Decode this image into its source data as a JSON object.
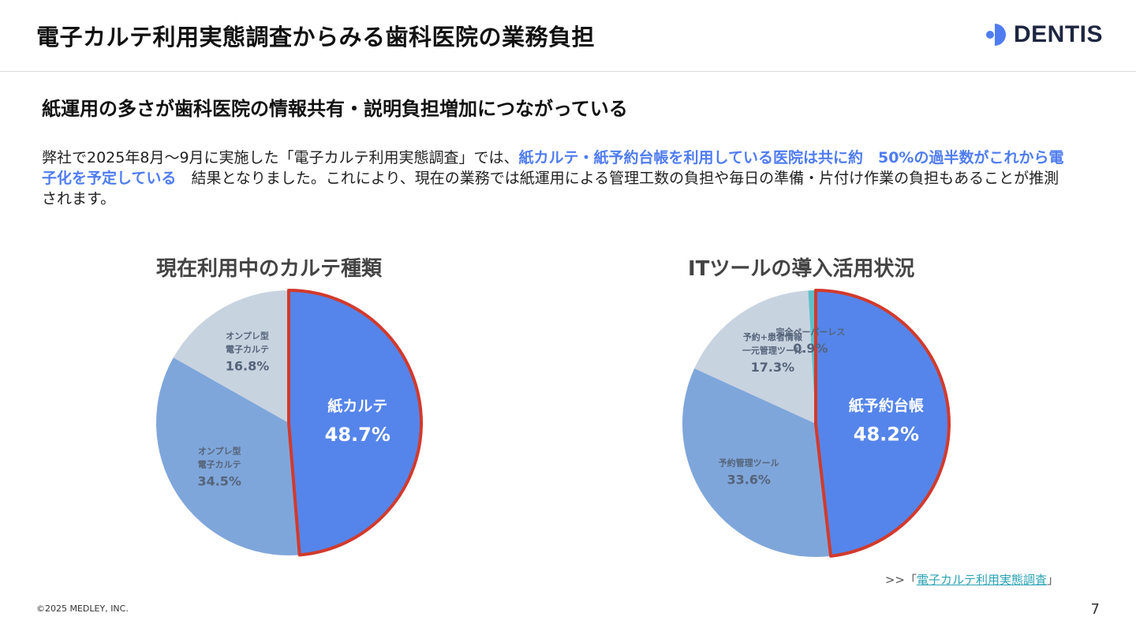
{
  "header": {
    "title": "電子カルテ利用実態調査からみる歯科医院の業務負担",
    "logo_text": "DENTIS"
  },
  "subtitle": "紙運用の多さが歯科医院の情報共有・説明負担増加につながっている",
  "body": {
    "part1": "弊社で2025年8月～9月に実施した「電子カルテ利用実態調査」では、",
    "highlight": "紙カルテ・紙予約台帳を利用している医院は共に約　50%の過半数がこれから電子化を予定している",
    "part2": "　結果となりました。これにより、現在の業務では紙運用による管理工数の負担や毎日の準備・片付け作業の負担もあることが推測されます。"
  },
  "chart_data": [
    {
      "type": "pie",
      "title": "現在利用中のカルテ種類",
      "slices": [
        {
          "label_lines": [
            "紙カルテ"
          ],
          "value": 48.7,
          "value_label": "48.7%",
          "color": "#5585ea",
          "highlight": true
        },
        {
          "label_lines": [
            "オンプレ型",
            "電子カルテ"
          ],
          "value": 34.5,
          "value_label": "34.5%",
          "color": "#7fa6da",
          "highlight": false
        },
        {
          "label_lines": [
            "オンプレ型",
            "電子カルテ"
          ],
          "value": 16.8,
          "value_label": "16.8%",
          "color": "#c8d3e0",
          "highlight": false
        }
      ]
    },
    {
      "type": "pie",
      "title": "ITツールの導入活用状況",
      "slices": [
        {
          "label_lines": [
            "紙予約台帳"
          ],
          "value": 48.2,
          "value_label": "48.2%",
          "color": "#5585ea",
          "highlight": true
        },
        {
          "label_lines": [
            "予約管理ツール"
          ],
          "value": 33.6,
          "value_label": "33.6%",
          "color": "#7fa6da",
          "highlight": false
        },
        {
          "label_lines": [
            "予約+患者情報",
            "一元管理ツール"
          ],
          "value": 17.3,
          "value_label": "17.3%",
          "color": "#c8d3e0",
          "highlight": false
        },
        {
          "label_lines": [
            "完全ペーパーレス"
          ],
          "value": 0.9,
          "value_label": "0.9%",
          "color": "#5fc0c8",
          "highlight": false
        }
      ]
    }
  ],
  "colors": {
    "accent": "#4f7cf0",
    "highlight_border": "#d23a2c",
    "link": "#2aa3b5"
  },
  "source": {
    "prefix": ">>「",
    "link_text": "電子カルテ利用実態調査",
    "suffix": "」"
  },
  "footer": {
    "copyright": "©2025 MEDLEY, INC.",
    "page_number": "7"
  }
}
